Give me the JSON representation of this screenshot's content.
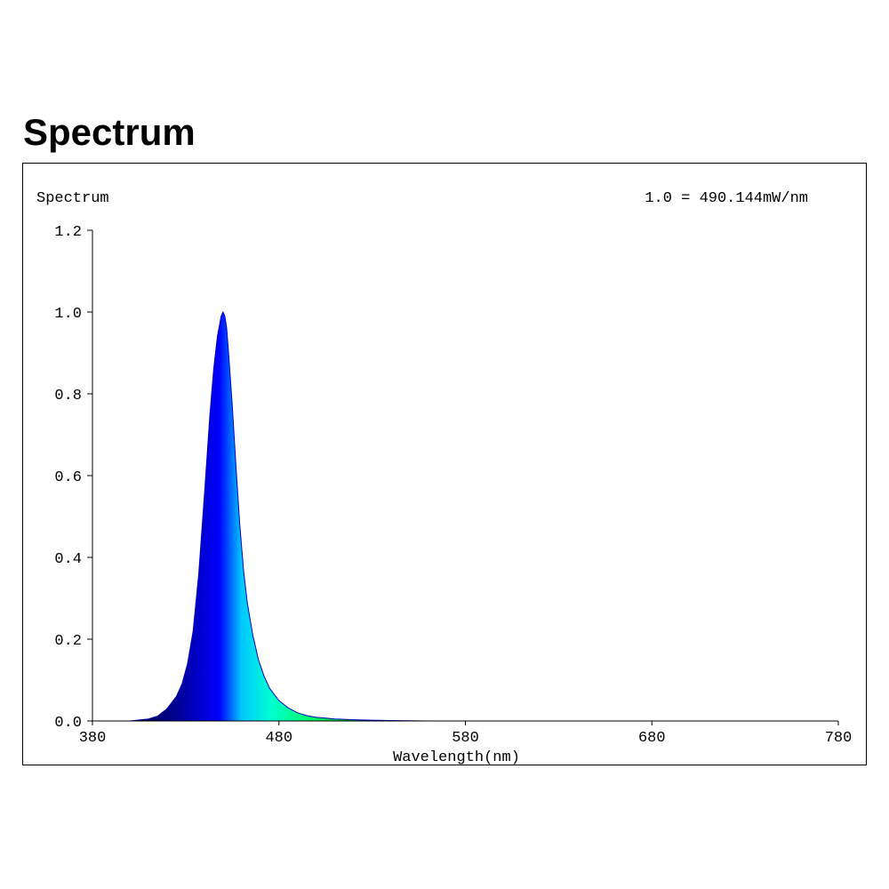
{
  "page_title": "Spectrum",
  "chart_data": {
    "type": "area",
    "title": "Spectrum",
    "scale_note": "1.0 = 490.144mW/nm",
    "xlabel": "Wavelength(nm)",
    "ylabel": "",
    "xlim": [
      380,
      780
    ],
    "ylim": [
      0,
      1.2
    ],
    "x_ticks": [
      "380",
      "480",
      "580",
      "680",
      "780"
    ],
    "y_ticks": [
      "0.0",
      "0.2",
      "0.4",
      "0.6",
      "0.8",
      "1.0",
      "1.2"
    ],
    "series": [
      {
        "x": [
          380,
          400,
          410,
          415,
          420,
          425,
          428,
          431,
          434,
          437,
          440,
          443,
          445,
          447,
          449,
          450,
          451,
          452,
          453,
          455,
          457,
          459,
          461,
          463,
          466,
          469,
          472,
          475,
          480,
          485,
          490,
          495,
          500,
          505,
          510,
          520,
          530,
          540,
          560,
          580,
          620,
          680,
          780
        ],
        "y": [
          0.0,
          0.0,
          0.005,
          0.012,
          0.03,
          0.06,
          0.09,
          0.14,
          0.22,
          0.36,
          0.55,
          0.75,
          0.86,
          0.94,
          0.99,
          1.0,
          0.99,
          0.96,
          0.9,
          0.77,
          0.62,
          0.48,
          0.37,
          0.29,
          0.21,
          0.15,
          0.11,
          0.08,
          0.05,
          0.032,
          0.02,
          0.013,
          0.009,
          0.007,
          0.005,
          0.003,
          0.002,
          0.001,
          0.0,
          0.0,
          0.0,
          0.0,
          0.0
        ]
      }
    ],
    "grid": false
  }
}
